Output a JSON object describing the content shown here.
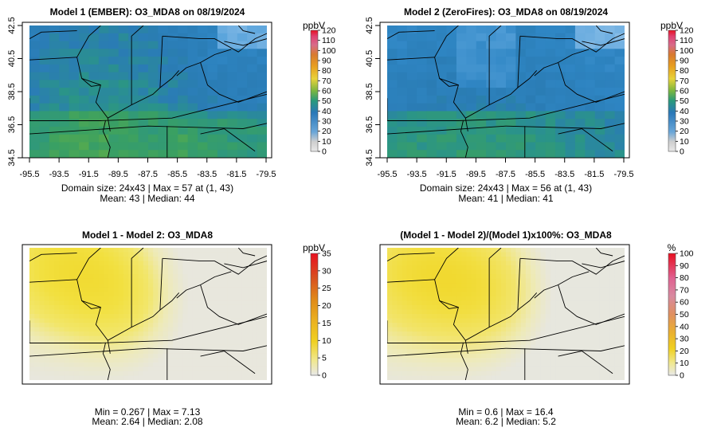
{
  "chart_data": [
    {
      "type": "heatmap",
      "title": "Model 1 (EMBER): O3_MDA8 on 08/19/2024",
      "x_ticks": [
        "-95.5",
        "-93.5",
        "-91.5",
        "-89.5",
        "-87.5",
        "-85.5",
        "-83.5",
        "-81.5",
        "-79.5"
      ],
      "y_ticks": [
        "34.5",
        "36.5",
        "38.5",
        "40.5",
        "42.5"
      ],
      "xlim": [
        -95.5,
        -79.5
      ],
      "ylim": [
        34.5,
        42.5
      ],
      "grid_size": "24x43",
      "colorbar": {
        "unit": "ppbV",
        "ticks": [
          "0",
          "10",
          "20",
          "30",
          "40",
          "50",
          "60",
          "70",
          "80",
          "90",
          "100",
          "110",
          "120"
        ],
        "range": [
          0,
          120
        ]
      },
      "stats": {
        "line1": "Domain size: 24x43 | Max = 57 at (1, 43)",
        "line2": "Mean: 43 |  Median: 44"
      },
      "mean": 43,
      "median": 44,
      "max": 57
    },
    {
      "type": "heatmap",
      "title": "Model 2 (ZeroFires): O3_MDA8 on 08/19/2024",
      "x_ticks": [
        "-95.5",
        "-93.5",
        "-91.5",
        "-89.5",
        "-87.5",
        "-85.5",
        "-83.5",
        "-81.5",
        "-79.5"
      ],
      "y_ticks": [
        "34.5",
        "36.5",
        "38.5",
        "40.5",
        "42.5"
      ],
      "xlim": [
        -95.5,
        -79.5
      ],
      "ylim": [
        34.5,
        42.5
      ],
      "grid_size": "24x43",
      "colorbar": {
        "unit": "ppbV",
        "ticks": [
          "0",
          "10",
          "20",
          "30",
          "40",
          "50",
          "60",
          "70",
          "80",
          "90",
          "100",
          "110",
          "120"
        ],
        "range": [
          0,
          120
        ]
      },
      "stats": {
        "line1": "Domain size: 24x43 | Max = 56 at (1, 43)",
        "line2": "Mean: 41 |  Median: 41"
      },
      "mean": 41,
      "median": 41,
      "max": 56
    },
    {
      "type": "heatmap",
      "title": "Model 1 - Model 2: O3_MDA8",
      "colorbar": {
        "unit": "ppbV",
        "ticks": [
          "0",
          "5",
          "10",
          "15",
          "20",
          "25",
          "30",
          "35"
        ],
        "range": [
          0,
          35
        ]
      },
      "stats": {
        "line1": "Min = 0.267 | Max = 7.13",
        "line2": "Mean: 2.64 |  Median: 2.08"
      },
      "min": 0.267,
      "max": 7.13,
      "mean": 2.64,
      "median": 2.08
    },
    {
      "type": "heatmap",
      "title": "(Model 1 - Model 2)/(Model 1)x100%: O3_MDA8",
      "colorbar": {
        "unit": "%",
        "ticks": [
          "0",
          "10",
          "20",
          "30",
          "40",
          "50",
          "60",
          "70",
          "80",
          "90",
          "100"
        ],
        "range": [
          0,
          100
        ]
      },
      "stats": {
        "line1": "Min = 0.6 | Max = 16.4",
        "line2": "Mean: 6.2 |  Median: 5.2"
      },
      "min": 0.6,
      "max": 16.4,
      "mean": 6.2,
      "median": 5.2
    }
  ],
  "colors": {
    "blue_low": "#3a8ccf",
    "blue_mid": "#2a7fb8",
    "teal": "#2f9a86",
    "green": "#4aa24e",
    "yellow": "#f2e33a",
    "gray": "#e6e6e6"
  }
}
